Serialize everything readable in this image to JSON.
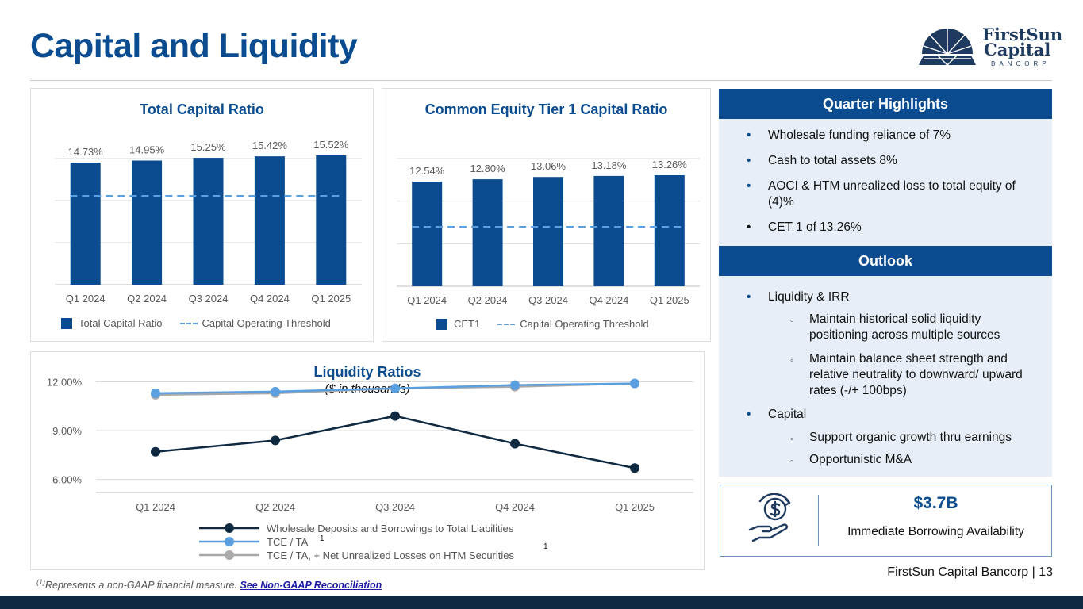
{
  "page": {
    "title": "Capital and Liquidity",
    "logo": {
      "line1": "FirstSun",
      "line2": "Capital",
      "line3": "BANCORP"
    },
    "footer_brand": "FirstSun Capital Bancorp  |  13",
    "footnote_marker": "(1)",
    "footnote_text": "Represents a non-GAAP financial measure. ",
    "footnote_link": "See Non-GAAP Reconciliation",
    "colors": {
      "brand_blue": "#0a4c8f",
      "threshold_dash": "#5aa0e0",
      "dark_navy": "#0f2a40"
    }
  },
  "chart_data": [
    {
      "type": "bar",
      "title": "Total Capital Ratio",
      "categories": [
        "Q1 2024",
        "Q2 2024",
        "Q3 2024",
        "Q4 2024",
        "Q1 2025"
      ],
      "series": [
        {
          "name": "Total Capital Ratio",
          "values": [
            14.73,
            14.95,
            15.25,
            15.42,
            15.52
          ],
          "labels": [
            "14.73%",
            "14.95%",
            "15.25%",
            "15.42%",
            "15.52%"
          ]
        }
      ],
      "reference_line": {
        "name": "Capital Operating Threshold",
        "style": "dashed"
      },
      "grid": true,
      "legend": "bottom"
    },
    {
      "type": "bar",
      "title": "Common Equity Tier 1 Capital Ratio",
      "categories": [
        "Q1 2024",
        "Q2 2024",
        "Q3 2024",
        "Q4 2024",
        "Q1 2025"
      ],
      "series": [
        {
          "name": "CET1",
          "values": [
            12.54,
            12.8,
            13.06,
            13.18,
            13.26
          ],
          "labels": [
            "12.54%",
            "12.80%",
            "13.06%",
            "13.18%",
            "13.26%"
          ]
        }
      ],
      "reference_line": {
        "name": "Capital Operating Threshold",
        "style": "dashed"
      },
      "grid": true,
      "legend": "bottom"
    },
    {
      "type": "line",
      "title": "Liquidity Ratios",
      "subtitle": "($ in thousands)",
      "categories": [
        "Q1 2024",
        "Q2 2024",
        "Q3 2024",
        "Q4 2024",
        "Q1 2025"
      ],
      "y_ticks": [
        "6.00%",
        "9.00%",
        "12.00%"
      ],
      "y_tick_values": [
        6,
        9,
        12
      ],
      "ylim": [
        5.2,
        13
      ],
      "series": [
        {
          "name": "Wholesale Deposits and Borrowings to Total Liabilities",
          "values": [
            7.7,
            8.4,
            9.9,
            8.2,
            6.7
          ],
          "color": "#0f2a40"
        },
        {
          "name": "TCE /  TA",
          "superscript": "1",
          "values": [
            11.3,
            11.4,
            11.6,
            11.8,
            11.9
          ],
          "color": "#5aa0e0"
        },
        {
          "name": "TCE /  TA, + Net Unrealized Losses on HTM Securities",
          "superscript": "1",
          "values": [
            11.2,
            11.3,
            11.6,
            11.7,
            11.9
          ],
          "color": "#a9a9a9"
        }
      ],
      "grid": true,
      "legend": "bottom"
    }
  ],
  "highlights": {
    "header": "Quarter Highlights",
    "items": [
      "Wholesale funding reliance of 7%",
      "Cash to total assets 8%",
      "AOCI & HTM unrealized loss to total equity of (4)%",
      "CET 1 of 13.26%"
    ]
  },
  "outlook": {
    "header": "Outlook",
    "liquidity_label": "Liquidity & IRR",
    "liquidity_sub": [
      "Maintain historical solid liquidity positioning across multiple sources",
      "Maintain balance sheet strength and relative neutrality to downward/ upward rates (-/+ 100bps)"
    ],
    "capital_label": "Capital",
    "capital_sub": [
      "Support organic growth thru earnings",
      "Opportunistic M&A"
    ]
  },
  "borrowing": {
    "value": "$3.7B",
    "label": "Immediate Borrowing Availability",
    "icon": "hand-money-icon"
  }
}
